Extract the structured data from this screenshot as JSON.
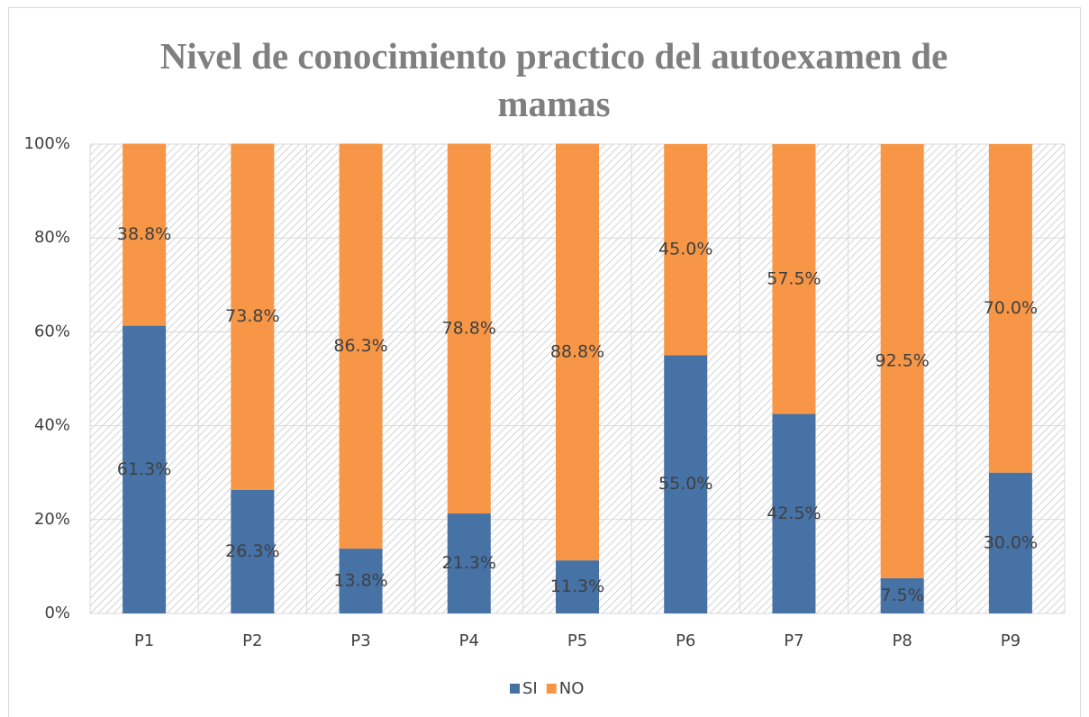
{
  "chart_data": {
    "type": "stacked_bar",
    "title": "Nivel de conocimiento practico del autoexamen de mamas",
    "categories": [
      "P1",
      "P2",
      "P3",
      "P4",
      "P5",
      "P6",
      "P7",
      "P8",
      "P9"
    ],
    "series": [
      {
        "name": "SI",
        "color": "#4672a6",
        "values": [
          61.3,
          26.3,
          13.8,
          21.3,
          11.3,
          55.0,
          42.5,
          7.5,
          30.0
        ],
        "value_labels": [
          "61.3%",
          "26.3%",
          "13.8%",
          "21.3%",
          "11.3%",
          "55.0%",
          "42.5%",
          "7.5%",
          "30.0%"
        ]
      },
      {
        "name": "NO",
        "color": "#f79646",
        "values": [
          38.8,
          73.8,
          86.3,
          78.8,
          88.8,
          45.0,
          57.5,
          92.5,
          70.0
        ],
        "value_labels": [
          "38.8%",
          "73.8%",
          "86.3%",
          "78.8%",
          "88.8%",
          "45.0%",
          "57.5%",
          "92.5%",
          "70.0%"
        ]
      }
    ],
    "ylim": [
      0,
      100
    ],
    "yticks": [
      {
        "value": 0,
        "label": "0%"
      },
      {
        "value": 20,
        "label": "20%"
      },
      {
        "value": 40,
        "label": "40%"
      },
      {
        "value": 60,
        "label": "60%"
      },
      {
        "value": 80,
        "label": "80%"
      },
      {
        "value": 100,
        "label": "100%"
      }
    ],
    "grid": true,
    "legend": "bottom"
  }
}
